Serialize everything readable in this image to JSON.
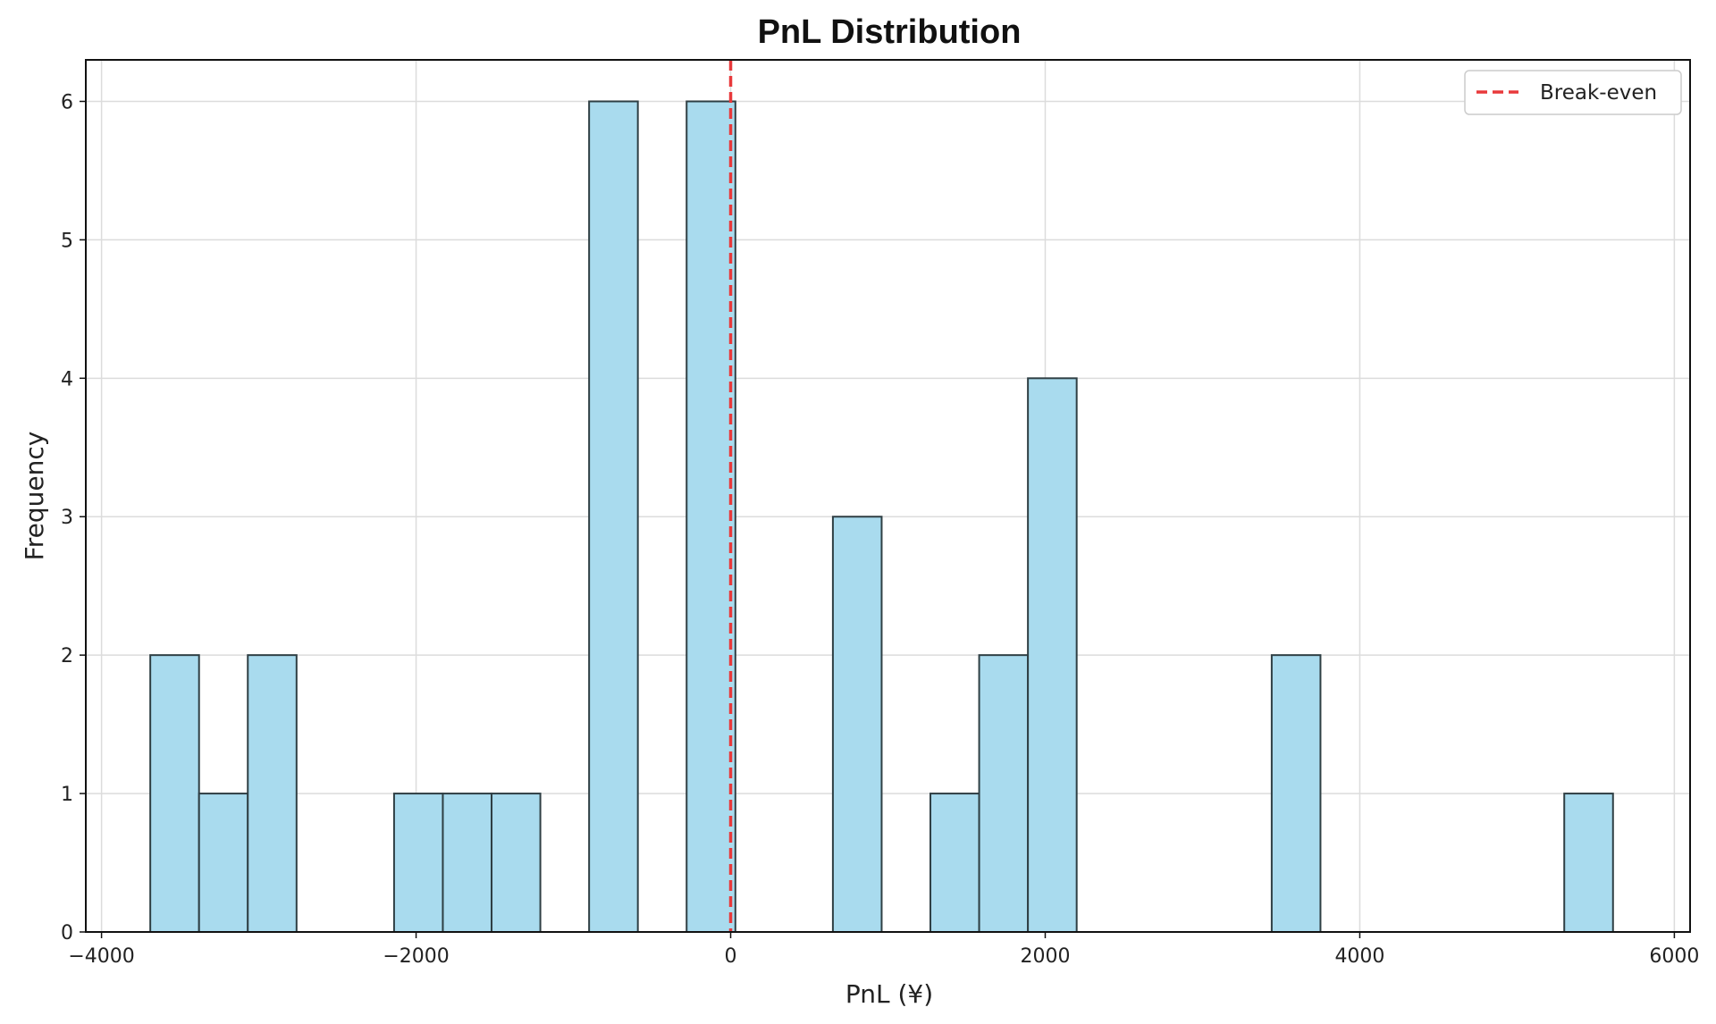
{
  "chart_data": {
    "type": "bar",
    "subtype": "histogram",
    "title": "PnL Distribution",
    "xlabel": "PnL (¥)",
    "ylabel": "Frequency",
    "xlim": [
      -4100,
      6100
    ],
    "ylim": [
      0,
      6.3
    ],
    "xticks": [
      -4000,
      -2000,
      0,
      2000,
      4000,
      6000
    ],
    "xtick_labels": [
      "−4000",
      "−2000",
      "0",
      "2000",
      "4000",
      "6000"
    ],
    "yticks": [
      0,
      1,
      2,
      3,
      4,
      5,
      6
    ],
    "ytick_labels": [
      "0",
      "1",
      "2",
      "3",
      "4",
      "5",
      "6"
    ],
    "bins": [
      {
        "x0": -3690,
        "x1": -3380,
        "count": 2
      },
      {
        "x0": -3380,
        "x1": -3070,
        "count": 1
      },
      {
        "x0": -3070,
        "x1": -2760,
        "count": 2
      },
      {
        "x0": -2140,
        "x1": -1830,
        "count": 1
      },
      {
        "x0": -1830,
        "x1": -1520,
        "count": 1
      },
      {
        "x0": -1520,
        "x1": -1210,
        "count": 1
      },
      {
        "x0": -900,
        "x1": -590,
        "count": 6
      },
      {
        "x0": -280,
        "x1": 30,
        "count": 6
      },
      {
        "x0": 650,
        "x1": 960,
        "count": 3
      },
      {
        "x0": 1270,
        "x1": 1580,
        "count": 1
      },
      {
        "x0": 1580,
        "x1": 1890,
        "count": 2
      },
      {
        "x0": 1890,
        "x1": 2200,
        "count": 4
      },
      {
        "x0": 3440,
        "x1": 3750,
        "count": 2
      },
      {
        "x0": 5300,
        "x1": 5610,
        "count": 1
      }
    ],
    "reference_line": {
      "x": 0,
      "label": "Break-even",
      "color": "#e8393b",
      "style": "dashed"
    },
    "legend": {
      "position": "top-right",
      "entries": [
        "Break-even"
      ]
    },
    "grid": true,
    "colors": {
      "bar_fill": "#a9dbee",
      "bar_edge": "#2f3f44",
      "grid": "#dcdcdc"
    }
  }
}
